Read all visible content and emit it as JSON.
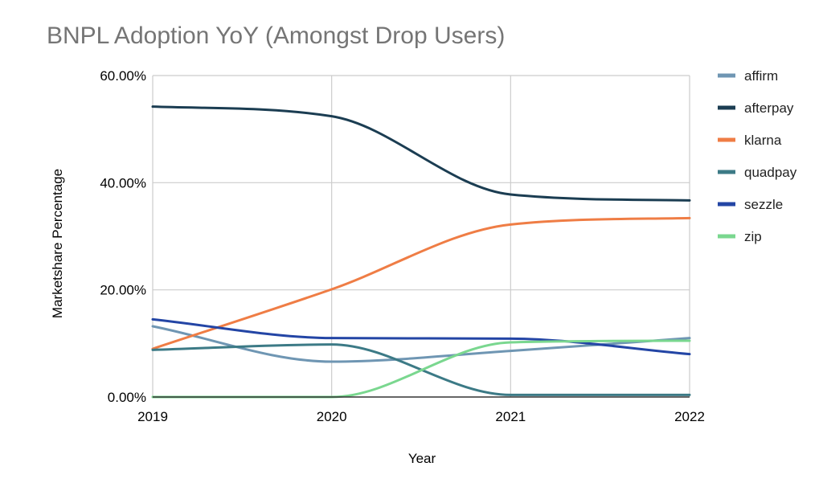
{
  "chart_data": {
    "type": "line",
    "title": "BNPL Adoption YoY (Amongst Drop Users)",
    "xlabel": "Year",
    "ylabel": "Marketshare Percentage",
    "x": [
      "2019",
      "2020",
      "2021",
      "2022"
    ],
    "ylim": [
      0,
      60
    ],
    "yticks": [
      "0.00%",
      "20.00%",
      "40.00%",
      "60.00%"
    ],
    "grid": true,
    "legend_position": "right",
    "series": [
      {
        "name": "affirm",
        "color": "#6f96b3",
        "values": [
          13.2,
          6.6,
          8.6,
          11.0
        ]
      },
      {
        "name": "afterpay",
        "color": "#1b3d52",
        "values": [
          54.2,
          52.4,
          37.8,
          36.7
        ]
      },
      {
        "name": "klarna",
        "color": "#ef7d45",
        "values": [
          9.0,
          20.1,
          32.2,
          33.4
        ]
      },
      {
        "name": "quadpay",
        "color": "#3c7a86",
        "values": [
          8.8,
          9.8,
          0.4,
          0.4
        ]
      },
      {
        "name": "sezzle",
        "color": "#2345a5",
        "values": [
          14.5,
          11.0,
          10.9,
          8.0
        ]
      },
      {
        "name": "zip",
        "color": "#7ad78f",
        "values": [
          0.0,
          0.0,
          10.2,
          10.5
        ]
      }
    ]
  }
}
